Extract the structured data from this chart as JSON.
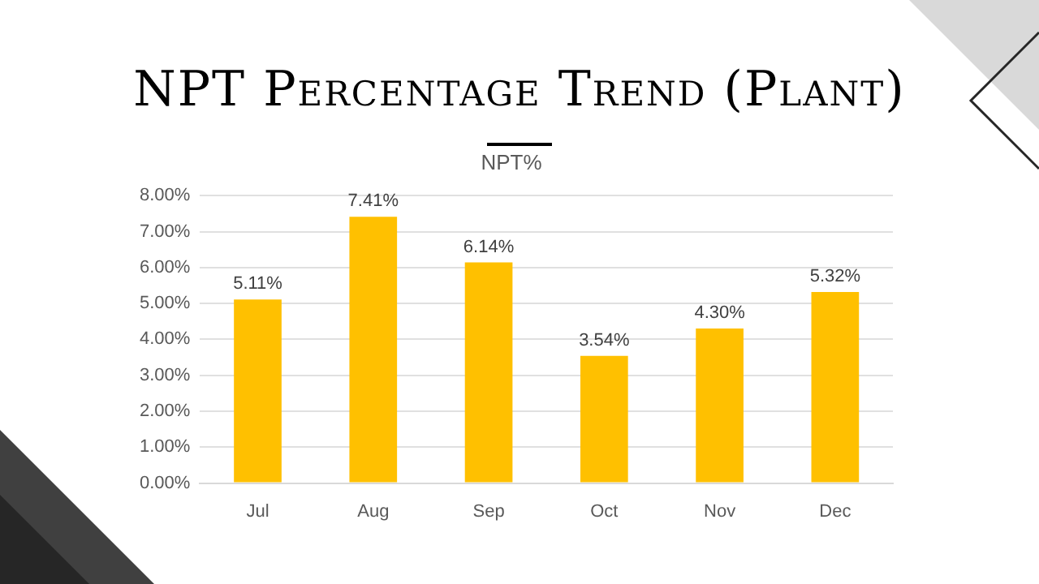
{
  "chart_data": {
    "type": "bar",
    "title": "NPT Percentage Trend (Plant)",
    "subtitle": "NPT%",
    "categories": [
      "Jul",
      "Aug",
      "Sep",
      "Oct",
      "Nov",
      "Dec"
    ],
    "values": [
      5.11,
      7.41,
      6.14,
      3.54,
      4.3,
      5.32
    ],
    "value_labels": [
      "5.11%",
      "7.41%",
      "6.14%",
      "3.54%",
      "4.30%",
      "5.32%"
    ],
    "color": "#ffc000",
    "ylim": [
      0,
      8
    ],
    "yticks": [
      {
        "value": 0,
        "label": "0.00%"
      },
      {
        "value": 1,
        "label": "1.00%"
      },
      {
        "value": 2,
        "label": "2.00%"
      },
      {
        "value": 3,
        "label": "3.00%"
      },
      {
        "value": 4,
        "label": "4.00%"
      },
      {
        "value": 5,
        "label": "5.00%"
      },
      {
        "value": 6,
        "label": "6.00%"
      },
      {
        "value": 7,
        "label": "7.00%"
      },
      {
        "value": 8,
        "label": "8.00%"
      }
    ],
    "grid": "y",
    "legend": false
  }
}
